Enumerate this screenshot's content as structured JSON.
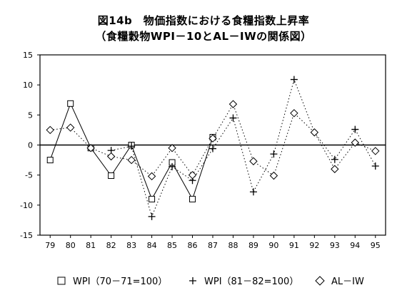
{
  "title": "図14b　物価指数における食糧指数上昇率",
  "subtitle": "（食糧穀物WPI－10とAL－IWの関係図）",
  "chart_data": {
    "type": "line",
    "title": "図14b　物価指数における食糧指数上昇率",
    "subtitle": "（食糧穀物WPI－10とAL－IWの関係図）",
    "categories": [
      "79",
      "80",
      "81",
      "82",
      "83",
      "84",
      "85",
      "86",
      "87",
      "88",
      "89",
      "90",
      "91",
      "92",
      "93",
      "94",
      "95"
    ],
    "ylim": [
      -15,
      15
    ],
    "yticks": [
      15,
      10,
      5,
      0,
      -5,
      -10,
      -15
    ],
    "ytick_labels": [
      "15",
      "10",
      "5",
      "0",
      "-5",
      "-10",
      "-15"
    ],
    "grid": false,
    "legend_position": "bottom",
    "series": [
      {
        "name": "WPI（70－71=100）",
        "marker": "square",
        "line": "solid",
        "values": [
          -2.5,
          6.9,
          -0.5,
          -5.1,
          0.0,
          -9.0,
          -2.9,
          -9.0,
          1.3,
          null,
          null,
          null,
          null,
          null,
          null,
          null,
          null
        ]
      },
      {
        "name": "WPI（81－82=100）",
        "marker": "plus",
        "line": "dotted",
        "values": [
          null,
          null,
          null,
          -0.9,
          -0.2,
          -11.9,
          -3.6,
          -5.9,
          -0.6,
          4.5,
          -7.8,
          -1.5,
          10.9,
          2.1,
          -2.4,
          2.6,
          -3.5
        ]
      },
      {
        "name": "AL－IW",
        "marker": "diamond",
        "line": "dotted",
        "values": [
          2.5,
          2.9,
          -0.5,
          -1.9,
          -2.5,
          -5.2,
          -0.5,
          -5.0,
          1.1,
          6.8,
          -2.7,
          -5.1,
          5.3,
          2.1,
          -4.0,
          0.4,
          -1.0
        ]
      }
    ]
  },
  "legend": {
    "wpi_70": "WPI（70－71=100）",
    "wpi_81": "WPI（81－82=100）",
    "al_iw": "AL－IW"
  }
}
